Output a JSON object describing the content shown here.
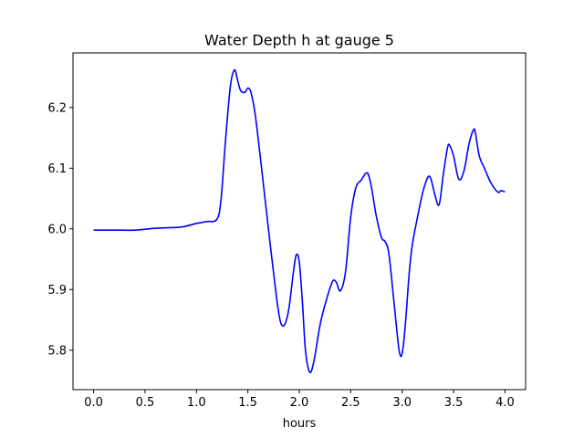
{
  "chart_data": {
    "type": "line",
    "title": "Water Depth h at gauge 5",
    "xlabel": "hours",
    "ylabel": "",
    "xlim": [
      -0.2,
      4.2
    ],
    "ylim": [
      5.735,
      6.29
    ],
    "grid": false,
    "xticks": [
      0.0,
      0.5,
      1.0,
      1.5,
      2.0,
      2.5,
      3.0,
      3.5,
      4.0
    ],
    "xtick_labels": [
      "0.0",
      "0.5",
      "1.0",
      "1.5",
      "2.0",
      "2.5",
      "3.0",
      "3.5",
      "4.0"
    ],
    "yticks": [
      5.8,
      5.9,
      6.0,
      6.1,
      6.2
    ],
    "ytick_labels": [
      "5.8",
      "5.9",
      "6.0",
      "6.1",
      "6.2"
    ],
    "series": [
      {
        "color": "#0000ff",
        "x": [
          0.0,
          0.2,
          0.4,
          0.6,
          0.85,
          1.0,
          1.1,
          1.2,
          1.24,
          1.28,
          1.33,
          1.37,
          1.4,
          1.43,
          1.47,
          1.5,
          1.53,
          1.57,
          1.62,
          1.7,
          1.78,
          1.82,
          1.86,
          1.9,
          1.94,
          1.97,
          2.0,
          2.03,
          2.06,
          2.1,
          2.14,
          2.2,
          2.25,
          2.3,
          2.33,
          2.36,
          2.4,
          2.45,
          2.5,
          2.55,
          2.6,
          2.63,
          2.65,
          2.67,
          2.7,
          2.75,
          2.8,
          2.83,
          2.87,
          2.92,
          2.97,
          3.0,
          3.03,
          3.07,
          3.1,
          3.15,
          3.2,
          3.25,
          3.28,
          3.32,
          3.36,
          3.4,
          3.44,
          3.46,
          3.5,
          3.55,
          3.6,
          3.65,
          3.69,
          3.71,
          3.75,
          3.8,
          3.85,
          3.9,
          3.94,
          3.96,
          4.0
        ],
        "y": [
          5.998,
          5.998,
          5.998,
          6.001,
          6.003,
          6.009,
          6.012,
          6.016,
          6.05,
          6.14,
          6.235,
          6.262,
          6.245,
          6.228,
          6.225,
          6.232,
          6.225,
          6.19,
          6.12,
          6.0,
          5.885,
          5.845,
          5.843,
          5.87,
          5.925,
          5.957,
          5.945,
          5.88,
          5.8,
          5.764,
          5.78,
          5.84,
          5.875,
          5.903,
          5.915,
          5.912,
          5.898,
          5.93,
          6.02,
          6.068,
          6.08,
          6.088,
          6.092,
          6.09,
          6.07,
          6.02,
          5.985,
          5.98,
          5.96,
          5.88,
          5.8,
          5.795,
          5.84,
          5.93,
          5.975,
          6.02,
          6.06,
          6.085,
          6.082,
          6.055,
          6.04,
          6.09,
          6.133,
          6.138,
          6.12,
          6.082,
          6.095,
          6.14,
          6.162,
          6.16,
          6.12,
          6.1,
          6.08,
          6.066,
          6.06,
          6.063,
          6.061
        ]
      }
    ]
  }
}
